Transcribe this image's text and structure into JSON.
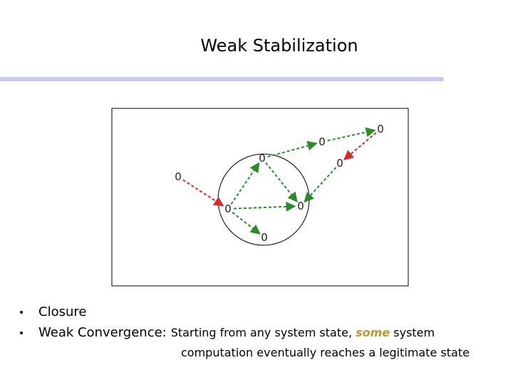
{
  "title": "Weak Stabilization",
  "colors": {
    "title_rule": "#c8c8f0",
    "green_arrow": "#2d8a2d",
    "red_arrow": "#d42a2a",
    "highlight": "#b99a2e"
  },
  "diagram": {
    "nodes": [
      {
        "id": "n_top_right",
        "label": "0"
      },
      {
        "id": "n_upper_mid",
        "label": "0"
      },
      {
        "id": "n_circle_top",
        "label": "0"
      },
      {
        "id": "n_right",
        "label": "0"
      },
      {
        "id": "n_left_outside",
        "label": "0"
      },
      {
        "id": "n_circle_right",
        "label": "0"
      },
      {
        "id": "n_circle_left",
        "label": "0"
      },
      {
        "id": "n_circle_bottom",
        "label": "0"
      }
    ],
    "edges": [
      {
        "from": "n_upper_mid",
        "to": "n_top_right",
        "color": "green"
      },
      {
        "from": "n_top_right",
        "to": "n_right",
        "color": "red"
      },
      {
        "from": "n_right",
        "to": "n_circle_right",
        "color": "green"
      },
      {
        "from": "n_circle_top",
        "to": "n_upper_mid",
        "color": "green"
      },
      {
        "from": "n_circle_top",
        "to": "n_circle_right",
        "color": "green"
      },
      {
        "from": "n_circle_left",
        "to": "n_circle_top",
        "color": "green"
      },
      {
        "from": "n_circle_left",
        "to": "n_circle_right",
        "color": "green"
      },
      {
        "from": "n_circle_left",
        "to": "n_circle_bottom",
        "color": "green"
      },
      {
        "from": "n_left_outside",
        "to": "n_circle_left",
        "color": "red"
      }
    ]
  },
  "bullets": {
    "closure": "Closure",
    "weak_label": "Weak Convergence:",
    "weak_desc_pre": "Starting from any system state,",
    "weak_desc_highlight": "some",
    "weak_desc_post": "system",
    "weak_desc_line2": "computation eventually reaches a legitimate state"
  }
}
